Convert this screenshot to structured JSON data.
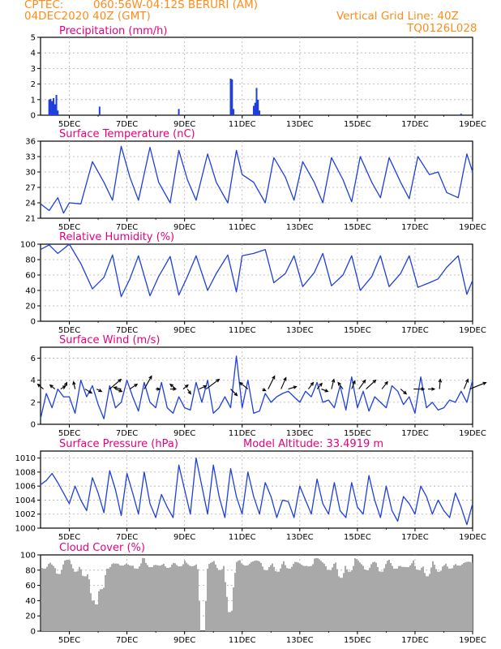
{
  "header": {
    "source": "CPTEC:",
    "location": "060:56W-04:12S  BERURI (AM)",
    "date": "04DEC2020 40Z (GMT)",
    "grid_note": "Vertical Grid Line: 40Z",
    "code": "TQ0126L028"
  },
  "colors": {
    "header": "#ff8c1a",
    "title": "#e6007e",
    "series": "#1f3fdc",
    "cloud": "#a9a9a9",
    "arrow": "#000000",
    "grid": "#b0b0b0"
  },
  "chart_data": [
    {
      "type": "bar",
      "title": "Precipitation (mm/h)",
      "x_ticks": [
        "5DEC",
        "7DEC",
        "9DEC",
        "11DEC",
        "13DEC",
        "15DEC",
        "17DEC",
        "19DEC"
      ],
      "ylim": [
        0,
        5
      ],
      "y_ticks": [
        0,
        1,
        2,
        3,
        4,
        5
      ],
      "grid": true,
      "events": [
        {
          "day": 4.3,
          "value": 1.0
        },
        {
          "day": 4.35,
          "value": 1.05
        },
        {
          "day": 4.4,
          "value": 0.9
        },
        {
          "day": 4.45,
          "value": 1.1
        },
        {
          "day": 4.5,
          "value": 0.7
        },
        {
          "day": 4.55,
          "value": 1.3
        },
        {
          "day": 4.6,
          "value": 0.3
        },
        {
          "day": 6.05,
          "value": 0.55
        },
        {
          "day": 8.8,
          "value": 0.4
        },
        {
          "day": 10.6,
          "value": 2.35
        },
        {
          "day": 10.65,
          "value": 2.3
        },
        {
          "day": 10.7,
          "value": 0.4
        },
        {
          "day": 11.4,
          "value": 0.6
        },
        {
          "day": 11.45,
          "value": 0.8
        },
        {
          "day": 11.5,
          "value": 1.75
        },
        {
          "day": 11.55,
          "value": 1.0
        },
        {
          "day": 11.6,
          "value": 0.3
        },
        {
          "day": 18.6,
          "value": 0.1
        }
      ]
    },
    {
      "type": "line",
      "title": "Surface Temperature (nC)",
      "x_ticks": [
        "5DEC",
        "7DEC",
        "9DEC",
        "11DEC",
        "13DEC",
        "15DEC",
        "17DEC",
        "19DEC"
      ],
      "ylim": [
        21,
        36
      ],
      "y_ticks": [
        21,
        24,
        27,
        30,
        33,
        36
      ],
      "grid": true,
      "series": [
        {
          "days": [
            4.0,
            4.3,
            4.6,
            4.8,
            5.0,
            5.4,
            5.8,
            6.2,
            6.5,
            6.8,
            7.1,
            7.4,
            7.8,
            8.1,
            8.5,
            8.8,
            9.1,
            9.4,
            9.8,
            10.1,
            10.5,
            10.8,
            11.0,
            11.4,
            11.8,
            12.1,
            12.5,
            12.8,
            13.1,
            13.5,
            13.8,
            14.1,
            14.5,
            14.8,
            15.1,
            15.5,
            15.8,
            16.1,
            16.5,
            16.8,
            17.1,
            17.5,
            17.8,
            18.1,
            18.5,
            18.8,
            19.0
          ],
          "values": [
            23.8,
            22.5,
            25.0,
            22.0,
            24.0,
            23.8,
            32.0,
            28.0,
            24.5,
            35.0,
            29.0,
            24.5,
            34.8,
            28.0,
            24.0,
            34.2,
            28.5,
            24.5,
            33.5,
            28.0,
            24.0,
            34.2,
            29.5,
            28.0,
            24.0,
            32.8,
            29.0,
            24.5,
            32.0,
            28.0,
            24.0,
            32.8,
            28.5,
            24.2,
            33.0,
            28.0,
            25.0,
            32.8,
            28.0,
            24.8,
            33.0,
            29.5,
            30.0,
            26.0,
            25.0,
            33.5,
            30.0
          ]
        }
      ]
    },
    {
      "type": "line",
      "title": "Relative Humidity (%)",
      "x_ticks": [
        "5DEC",
        "7DEC",
        "9DEC",
        "11DEC",
        "13DEC",
        "15DEC",
        "17DEC",
        "19DEC"
      ],
      "ylim": [
        0,
        100
      ],
      "y_ticks": [
        0,
        20,
        40,
        60,
        80,
        100
      ],
      "grid": true,
      "series": [
        {
          "days": [
            4.0,
            4.3,
            4.6,
            4.8,
            5.0,
            5.4,
            5.8,
            6.2,
            6.5,
            6.8,
            7.1,
            7.4,
            7.8,
            8.1,
            8.5,
            8.8,
            9.1,
            9.4,
            9.8,
            10.1,
            10.5,
            10.8,
            11.0,
            11.4,
            11.8,
            12.1,
            12.5,
            12.8,
            13.1,
            13.5,
            13.8,
            14.1,
            14.5,
            14.8,
            15.1,
            15.5,
            15.8,
            16.1,
            16.5,
            16.8,
            17.1,
            17.5,
            17.8,
            18.1,
            18.5,
            18.8,
            19.0
          ],
          "values": [
            93,
            99,
            88,
            94,
            100,
            75,
            42,
            57,
            86,
            32,
            55,
            85,
            33,
            58,
            84,
            34,
            58,
            85,
            40,
            62,
            86,
            38,
            85,
            88,
            93,
            50,
            62,
            85,
            45,
            63,
            88,
            46,
            60,
            85,
            40,
            58,
            85,
            45,
            62,
            85,
            44,
            50,
            55,
            70,
            85,
            35,
            53
          ]
        }
      ]
    },
    {
      "type": "line",
      "title": "Surface Wind (m/s)",
      "x_ticks": [
        "5DEC",
        "7DEC",
        "9DEC",
        "11DEC",
        "13DEC",
        "15DEC",
        "17DEC",
        "19DEC"
      ],
      "ylim": [
        0,
        7
      ],
      "y_ticks": [
        0,
        2,
        4,
        6
      ],
      "grid": true,
      "series": [
        {
          "days": [
            4.0,
            4.2,
            4.4,
            4.6,
            4.8,
            5.0,
            5.2,
            5.4,
            5.6,
            5.8,
            6.0,
            6.2,
            6.4,
            6.6,
            6.8,
            7.0,
            7.2,
            7.4,
            7.6,
            7.8,
            8.0,
            8.2,
            8.4,
            8.6,
            8.8,
            9.0,
            9.2,
            9.4,
            9.6,
            9.8,
            10.0,
            10.2,
            10.4,
            10.6,
            10.8,
            11.0,
            11.2,
            11.4,
            11.6,
            11.8,
            12.0,
            12.2,
            12.4,
            12.6,
            12.8,
            13.0,
            13.2,
            13.4,
            13.6,
            13.8,
            14.0,
            14.2,
            14.4,
            14.6,
            14.8,
            15.0,
            15.2,
            15.4,
            15.6,
            15.8,
            16.0,
            16.2,
            16.4,
            16.6,
            16.8,
            17.0,
            17.2,
            17.4,
            17.6,
            17.8,
            18.0,
            18.2,
            18.4,
            18.6,
            18.8,
            19.0
          ],
          "values": [
            0.5,
            2.8,
            1.5,
            3.2,
            2.5,
            2.5,
            1.0,
            4.0,
            2.5,
            3.5,
            1.8,
            0.5,
            3.5,
            1.5,
            2.0,
            4.0,
            2.5,
            1.2,
            3.8,
            2.0,
            1.5,
            3.8,
            1.5,
            1.0,
            2.5,
            1.5,
            1.3,
            3.8,
            2.0,
            4.0,
            1.0,
            1.5,
            2.5,
            1.5,
            6.2,
            1.5,
            4.0,
            1.0,
            1.2,
            2.8,
            2.0,
            2.5,
            2.8,
            3.0,
            2.5,
            2.0,
            3.0,
            2.5,
            3.8,
            2.0,
            2.2,
            1.5,
            3.5,
            1.3,
            4.3,
            1.5,
            3.0,
            1.2,
            2.5,
            2.0,
            1.5,
            3.5,
            3.0,
            1.8,
            2.5,
            1.0,
            4.3,
            1.5,
            2.0,
            1.3,
            1.5,
            2.2,
            2.0,
            3.0,
            2.0,
            4.0
          ]
        }
      ],
      "wind_arrows": [
        {
          "day": 4.1,
          "dx": -7,
          "dy": -6
        },
        {
          "day": 4.5,
          "dx": -6,
          "dy": -5
        },
        {
          "day": 4.7,
          "dx": 6,
          "dy": -4
        },
        {
          "day": 4.8,
          "dx": 4,
          "dy": -8
        },
        {
          "day": 5.2,
          "dx": -2,
          "dy": -9
        },
        {
          "day": 5.55,
          "dx": 8,
          "dy": 5
        },
        {
          "day": 5.95,
          "dx": 6,
          "dy": 3
        },
        {
          "day": 6.4,
          "dx": 14,
          "dy": -12
        },
        {
          "day": 6.6,
          "dx": 8,
          "dy": 3
        },
        {
          "day": 6.8,
          "dx": -9,
          "dy": -2
        },
        {
          "day": 7.1,
          "dx": 9,
          "dy": -6
        },
        {
          "day": 7.6,
          "dx": 9,
          "dy": -16
        },
        {
          "day": 8.0,
          "dx": 5,
          "dy": 0
        },
        {
          "day": 8.5,
          "dx": 7,
          "dy": 0
        },
        {
          "day": 8.7,
          "dx": -7,
          "dy": -6
        },
        {
          "day": 8.95,
          "dx": 6,
          "dy": -5
        },
        {
          "day": 9.1,
          "dx": 4,
          "dy": 6
        },
        {
          "day": 9.5,
          "dx": 9,
          "dy": -4
        },
        {
          "day": 9.75,
          "dx": 16,
          "dy": -12
        },
        {
          "day": 10.6,
          "dx": 8,
          "dy": 8
        },
        {
          "day": 11.2,
          "dx": -10,
          "dy": -8
        },
        {
          "day": 11.7,
          "dx": 4,
          "dy": 2
        },
        {
          "day": 11.9,
          "dx": 8,
          "dy": -16
        },
        {
          "day": 12.35,
          "dx": 6,
          "dy": -14
        },
        {
          "day": 12.6,
          "dx": 10,
          "dy": -3
        },
        {
          "day": 13.3,
          "dx": 6,
          "dy": -8
        },
        {
          "day": 13.6,
          "dx": 6,
          "dy": -7
        },
        {
          "day": 13.75,
          "dx": 8,
          "dy": 3
        },
        {
          "day": 14.1,
          "dx": 3,
          "dy": -12
        },
        {
          "day": 14.5,
          "dx": -6,
          "dy": -8
        },
        {
          "day": 14.8,
          "dx": 4,
          "dy": -10
        },
        {
          "day": 15.05,
          "dx": 8,
          "dy": -11
        },
        {
          "day": 15.3,
          "dx": 12,
          "dy": -11
        },
        {
          "day": 15.85,
          "dx": 7,
          "dy": -9
        },
        {
          "day": 16.5,
          "dx": 7,
          "dy": 6
        },
        {
          "day": 16.95,
          "dx": 13,
          "dy": 0
        },
        {
          "day": 17.45,
          "dx": 8,
          "dy": 0
        },
        {
          "day": 17.85,
          "dx": 1,
          "dy": -12
        },
        {
          "day": 18.7,
          "dx": 5,
          "dy": -12
        },
        {
          "day": 18.9,
          "dx": 20,
          "dy": -8
        }
      ]
    },
    {
      "type": "line",
      "title": "Surface Pressure (hPa)",
      "annotation": "Model Altitude: 33.4919 m",
      "x_ticks": [
        "5DEC",
        "7DEC",
        "9DEC",
        "11DEC",
        "13DEC",
        "15DEC",
        "17DEC",
        "19DEC"
      ],
      "ylim": [
        1000,
        1011
      ],
      "y_ticks": [
        1000,
        1002,
        1004,
        1006,
        1008,
        1010
      ],
      "grid": true,
      "series": [
        {
          "days": [
            4.0,
            4.2,
            4.4,
            4.6,
            4.8,
            5.0,
            5.2,
            5.4,
            5.6,
            5.8,
            6.0,
            6.2,
            6.4,
            6.6,
            6.8,
            7.0,
            7.2,
            7.4,
            7.6,
            7.8,
            8.0,
            8.2,
            8.4,
            8.6,
            8.8,
            9.0,
            9.2,
            9.4,
            9.6,
            9.8,
            10.0,
            10.2,
            10.4,
            10.6,
            10.8,
            11.0,
            11.2,
            11.4,
            11.6,
            11.8,
            12.0,
            12.2,
            12.4,
            12.6,
            12.8,
            13.0,
            13.2,
            13.4,
            13.6,
            13.8,
            14.0,
            14.2,
            14.4,
            14.6,
            14.8,
            15.0,
            15.2,
            15.4,
            15.6,
            15.8,
            16.0,
            16.2,
            16.4,
            16.6,
            16.8,
            17.0,
            17.2,
            17.4,
            17.6,
            17.8,
            18.0,
            18.2,
            18.4,
            18.6,
            18.8,
            19.0
          ],
          "values": [
            1006.2,
            1006.8,
            1007.8,
            1006.5,
            1005.0,
            1003.5,
            1006.0,
            1004.0,
            1002.5,
            1007.2,
            1005.0,
            1002.2,
            1008.2,
            1005.5,
            1001.8,
            1007.8,
            1005.0,
            1002.0,
            1008.0,
            1003.5,
            1001.5,
            1004.8,
            1003.0,
            1001.5,
            1009.0,
            1005.5,
            1002.0,
            1010.0,
            1006.0,
            1002.0,
            1009.0,
            1004.5,
            1001.5,
            1008.5,
            1004.5,
            1002.0,
            1008.0,
            1004.5,
            1002.0,
            1006.5,
            1004.5,
            1001.5,
            1004.0,
            1003.8,
            1001.5,
            1006.0,
            1004.0,
            1002.0,
            1007.0,
            1003.5,
            1002.0,
            1006.5,
            1002.5,
            1001.5,
            1006.5,
            1003.0,
            1002.0,
            1007.5,
            1004.0,
            1001.5,
            1006.0,
            1002.5,
            1001.0,
            1004.5,
            1003.5,
            1002.0,
            1006.0,
            1004.5,
            1002.0,
            1004.0,
            1002.5,
            1001.5,
            1005.0,
            1003.0,
            1000.5,
            1003.5
          ]
        }
      ]
    },
    {
      "type": "bar",
      "title": "Cloud Cover (%)",
      "x_ticks": [
        "5DEC",
        "7DEC",
        "9DEC",
        "11DEC",
        "13DEC",
        "15DEC",
        "17DEC",
        "19DEC"
      ],
      "ylim": [
        0,
        100
      ],
      "y_ticks": [
        0,
        20,
        40,
        60,
        80,
        100
      ],
      "grid": true,
      "baseline": 90,
      "dips": [
        {
          "day": 4.1,
          "value": 82
        },
        {
          "day": 4.6,
          "value": 75
        },
        {
          "day": 5.2,
          "value": 78
        },
        {
          "day": 5.5,
          "value": 72
        },
        {
          "day": 5.7,
          "value": 68
        },
        {
          "day": 5.8,
          "value": 40
        },
        {
          "day": 5.9,
          "value": 35
        },
        {
          "day": 6.1,
          "value": 55
        },
        {
          "day": 6.3,
          "value": 82
        },
        {
          "day": 6.8,
          "value": 86
        },
        {
          "day": 7.3,
          "value": 82
        },
        {
          "day": 7.8,
          "value": 84
        },
        {
          "day": 8.1,
          "value": 86
        },
        {
          "day": 8.4,
          "value": 83
        },
        {
          "day": 8.8,
          "value": 85
        },
        {
          "day": 9.2,
          "value": 88
        },
        {
          "day": 9.6,
          "value": 0
        },
        {
          "day": 9.7,
          "value": 86
        },
        {
          "day": 10.2,
          "value": 80
        },
        {
          "day": 10.5,
          "value": 45
        },
        {
          "day": 10.55,
          "value": 25
        },
        {
          "day": 10.6,
          "value": 60
        },
        {
          "day": 11.1,
          "value": 86
        },
        {
          "day": 11.8,
          "value": 80
        },
        {
          "day": 12.2,
          "value": 78
        },
        {
          "day": 12.6,
          "value": 82
        },
        {
          "day": 13.3,
          "value": 85
        },
        {
          "day": 14.0,
          "value": 80
        },
        {
          "day": 14.4,
          "value": 70
        },
        {
          "day": 14.7,
          "value": 78
        },
        {
          "day": 15.3,
          "value": 80
        },
        {
          "day": 15.8,
          "value": 78
        },
        {
          "day": 16.3,
          "value": 82
        },
        {
          "day": 16.7,
          "value": 84
        },
        {
          "day": 17.1,
          "value": 80
        },
        {
          "day": 17.4,
          "value": 72
        },
        {
          "day": 17.8,
          "value": 78
        },
        {
          "day": 18.2,
          "value": 82
        },
        {
          "day": 18.5,
          "value": 86
        }
      ]
    }
  ]
}
